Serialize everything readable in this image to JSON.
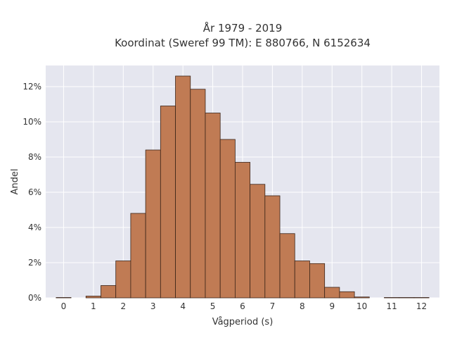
{
  "chart_data": {
    "type": "bar",
    "title_lines": [
      "År 1979 - 2019",
      "Koordinat (Sweref 99 TM): E 880766, N 6152634"
    ],
    "xlabel": "Vågperiod (s)",
    "ylabel": "Andel",
    "xlim": [
      -0.6,
      12.6
    ],
    "ylim": [
      0,
      13.2
    ],
    "x_ticks": [
      0,
      1,
      2,
      3,
      4,
      5,
      6,
      7,
      8,
      9,
      10,
      11,
      12
    ],
    "x_tick_labels": [
      "0",
      "1",
      "2",
      "3",
      "4",
      "5",
      "6",
      "7",
      "8",
      "9",
      "10",
      "11",
      "12"
    ],
    "y_ticks": [
      0,
      2,
      4,
      6,
      8,
      10,
      12
    ],
    "y_tick_labels": [
      "0%",
      "2%",
      "4%",
      "6%",
      "8%",
      "10%",
      "12%"
    ],
    "bin_width": 0.5,
    "bin_centers": [
      0,
      0.5,
      1,
      1.5,
      2,
      2.5,
      3,
      3.5,
      4,
      4.5,
      5,
      5.5,
      6,
      6.5,
      7,
      7.5,
      8,
      8.5,
      9,
      9.5,
      10,
      10.5,
      11,
      11.5,
      12
    ],
    "values": [
      0.02,
      0.0,
      0.1,
      0.7,
      2.1,
      4.8,
      8.4,
      10.9,
      12.6,
      11.85,
      10.5,
      9.0,
      7.7,
      6.45,
      5.8,
      3.65,
      2.1,
      1.95,
      0.6,
      0.35,
      0.05,
      0.0,
      0.02,
      0.02,
      0.02
    ],
    "grid": true,
    "colors": {
      "bar_fill": "#c07b54",
      "bar_edge": "#3a2418",
      "plot_bg": "#e5e6ef",
      "grid": "#ffffff"
    }
  }
}
